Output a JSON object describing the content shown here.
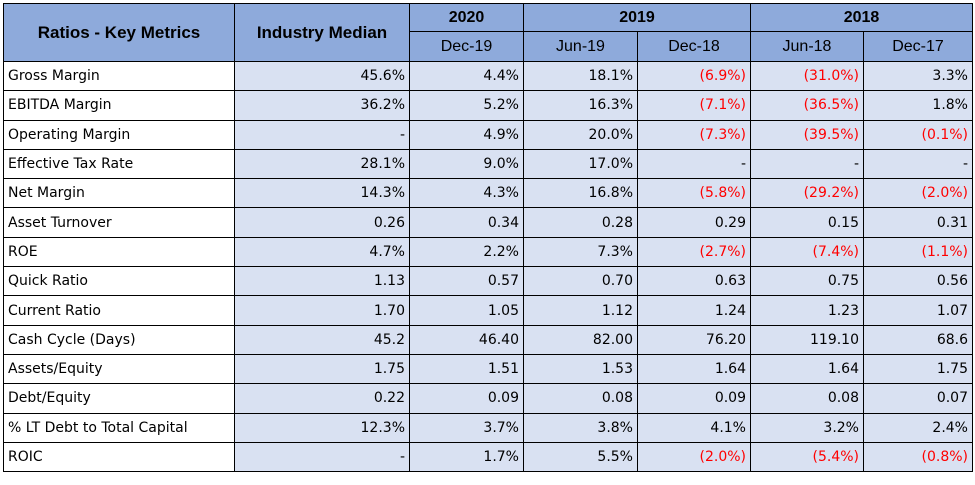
{
  "header": {
    "col_metric": "Ratios - Key Metrics",
    "col_industry": "Industry Median",
    "year_groups": [
      "2020",
      "2019",
      "2018"
    ],
    "periods": [
      "Dec-19",
      "Jun-19",
      "Dec-18",
      "Jun-18",
      "Dec-17"
    ]
  },
  "colors": {
    "header_bg": "#8eaadb",
    "cell_bg": "#d9e1f2",
    "negative_text": "#ff0000"
  },
  "rows": [
    {
      "label": "Gross Margin",
      "values": [
        "45.6%",
        "4.4%",
        "18.1%",
        "(6.9%)",
        "(31.0%)",
        "3.3%"
      ]
    },
    {
      "label": "EBITDA Margin",
      "values": [
        "36.2%",
        "5.2%",
        "16.3%",
        "(7.1%)",
        "(36.5%)",
        "1.8%"
      ]
    },
    {
      "label": "Operating Margin",
      "values": [
        "-",
        "4.9%",
        "20.0%",
        "(7.3%)",
        "(39.5%)",
        "(0.1%)"
      ]
    },
    {
      "label": "Effective Tax Rate",
      "values": [
        "28.1%",
        "9.0%",
        "17.0%",
        "-",
        "-",
        "-"
      ]
    },
    {
      "label": "Net Margin",
      "values": [
        "14.3%",
        "4.3%",
        "16.8%",
        "(5.8%)",
        "(29.2%)",
        "(2.0%)"
      ]
    },
    {
      "label": "Asset Turnover",
      "values": [
        "0.26",
        "0.34",
        "0.28",
        "0.29",
        "0.15",
        "0.31"
      ]
    },
    {
      "label": "ROE",
      "values": [
        "4.7%",
        "2.2%",
        "7.3%",
        "(2.7%)",
        "(7.4%)",
        "(1.1%)"
      ]
    },
    {
      "label": "Quick Ratio",
      "values": [
        "1.13",
        "0.57",
        "0.70",
        "0.63",
        "0.75",
        "0.56"
      ]
    },
    {
      "label": "Current Ratio",
      "values": [
        "1.70",
        "1.05",
        "1.12",
        "1.24",
        "1.23",
        "1.07"
      ]
    },
    {
      "label": "Cash Cycle (Days)",
      "values": [
        "45.2",
        "46.40",
        "82.00",
        "76.20",
        "119.10",
        "68.6"
      ]
    },
    {
      "label": "Assets/Equity",
      "values": [
        "1.75",
        "1.51",
        "1.53",
        "1.64",
        "1.64",
        "1.75"
      ]
    },
    {
      "label": "Debt/Equity",
      "values": [
        "0.22",
        "0.09",
        "0.08",
        "0.09",
        "0.08",
        "0.07"
      ]
    },
    {
      "label": "% LT Debt to Total Capital",
      "values": [
        "12.3%",
        "3.7%",
        "3.8%",
        "4.1%",
        "3.2%",
        "2.4%"
      ]
    },
    {
      "label": "ROIC",
      "values": [
        "-",
        "1.7%",
        "5.5%",
        "(2.0%)",
        "(5.4%)",
        "(0.8%)"
      ]
    }
  ]
}
